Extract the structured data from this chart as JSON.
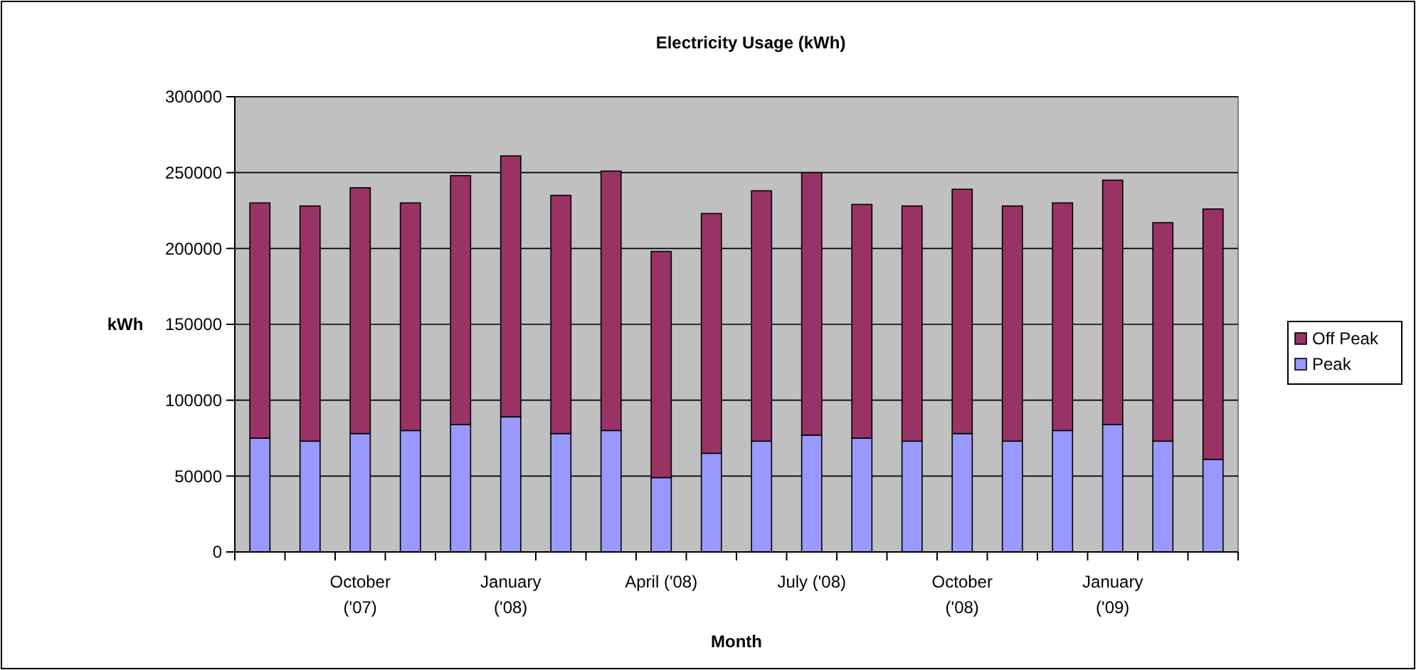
{
  "chart_data": {
    "type": "bar",
    "title": "Electricity Usage (kWh)",
    "xlabel": "Month",
    "ylabel": "kWh",
    "categories": [
      null,
      null,
      "October ('07)",
      null,
      null,
      "January ('08)",
      null,
      null,
      "April ('08)",
      null,
      null,
      "July ('08)",
      null,
      null,
      "October ('08)",
      null,
      null,
      "January ('09)",
      null,
      null
    ],
    "series": [
      {
        "name": "Peak",
        "color": "#9999ff",
        "values": [
          75000,
          73000,
          78000,
          80000,
          84000,
          89000,
          78000,
          80000,
          49000,
          65000,
          73000,
          77000,
          75000,
          73000,
          78000,
          73000,
          80000,
          84000,
          73000,
          61000
        ]
      },
      {
        "name": "Off Peak",
        "color": "#993366",
        "values": [
          155000,
          155000,
          162000,
          150000,
          164000,
          172000,
          157000,
          171000,
          149000,
          158000,
          165000,
          173000,
          154000,
          155000,
          161000,
          155000,
          150000,
          161000,
          144000,
          165000
        ]
      }
    ],
    "stacked": true,
    "ylim": [
      0,
      300000
    ],
    "yticks": [
      0,
      50000,
      100000,
      150000,
      200000,
      250000,
      300000
    ],
    "grid": "y",
    "legend": "right"
  }
}
